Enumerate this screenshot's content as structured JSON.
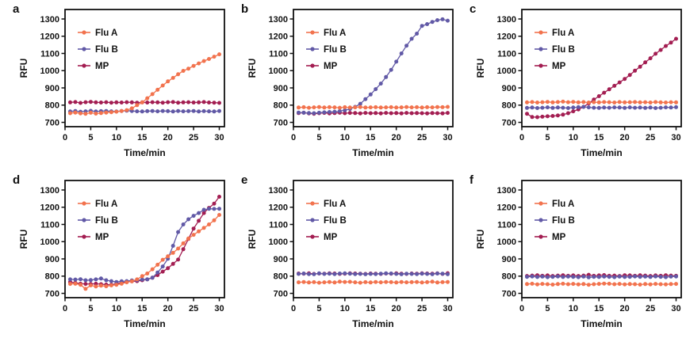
{
  "figure": {
    "background": "#ffffff",
    "text_color": "#111111",
    "axis_color": "#111111",
    "series_colors": {
      "Flu A": "#F2734E",
      "Flu B": "#6159A6",
      "MP": "#A31E52"
    }
  },
  "chart_data": [
    {
      "panel_label": "a",
      "type": "line",
      "xlabel": "Time/min",
      "ylabel": "RFU",
      "xlim": [
        0,
        31
      ],
      "ylim": [
        675,
        1355
      ],
      "xticks": [
        0,
        5,
        10,
        15,
        20,
        25,
        30
      ],
      "yticks": [
        700,
        800,
        900,
        1000,
        1100,
        1200,
        1300
      ],
      "grid": false,
      "legend_position": "upper-left",
      "marker": "circle",
      "x": [
        1,
        2,
        3,
        4,
        5,
        6,
        7,
        8,
        9,
        10,
        11,
        12,
        13,
        14,
        15,
        16,
        17,
        18,
        19,
        20,
        21,
        22,
        23,
        24,
        25,
        26,
        27,
        28,
        29,
        30
      ],
      "series": [
        {
          "name": "Flu A",
          "color": "#F2734E",
          "values": [
            753,
            757,
            752,
            750,
            756,
            751,
            754,
            757,
            759,
            762,
            766,
            771,
            781,
            800,
            816,
            840,
            864,
            889,
            914,
            938,
            958,
            979,
            999,
            1012,
            1028,
            1042,
            1056,
            1068,
            1081,
            1095
          ]
        },
        {
          "name": "Flu B",
          "color": "#6159A6",
          "values": [
            763,
            766,
            762,
            764,
            767,
            763,
            765,
            766,
            764,
            763,
            766,
            768,
            766,
            764,
            763,
            765,
            766,
            764,
            766,
            765,
            763,
            766,
            764,
            765,
            766,
            763,
            765,
            764,
            763,
            766
          ]
        },
        {
          "name": "MP",
          "color": "#A31E52",
          "values": [
            816,
            818,
            813,
            817,
            819,
            816,
            815,
            817,
            814,
            816,
            815,
            817,
            816,
            814,
            816,
            815,
            817,
            816,
            814,
            817,
            818,
            814,
            816,
            817,
            815,
            816,
            818,
            815,
            814,
            813
          ]
        }
      ]
    },
    {
      "panel_label": "b",
      "type": "line",
      "xlabel": "Time/min",
      "ylabel": "RFU",
      "xlim": [
        0,
        31
      ],
      "ylim": [
        675,
        1355
      ],
      "xticks": [
        0,
        5,
        10,
        15,
        20,
        25,
        30
      ],
      "yticks": [
        700,
        800,
        900,
        1000,
        1100,
        1200,
        1300
      ],
      "grid": false,
      "legend_position": "upper-left",
      "marker": "circle",
      "x": [
        1,
        2,
        3,
        4,
        5,
        6,
        7,
        8,
        9,
        10,
        11,
        12,
        13,
        14,
        15,
        16,
        17,
        18,
        19,
        20,
        21,
        22,
        23,
        24,
        25,
        26,
        27,
        28,
        29,
        30
      ],
      "series": [
        {
          "name": "Flu A",
          "color": "#F2734E",
          "values": [
            786,
            788,
            785,
            787,
            789,
            786,
            788,
            787,
            785,
            788,
            786,
            787,
            789,
            786,
            787,
            788,
            786,
            787,
            788,
            786,
            787,
            789,
            787,
            788,
            786,
            788,
            787,
            789,
            788,
            790
          ]
        },
        {
          "name": "Flu B",
          "color": "#6159A6",
          "values": [
            757,
            756,
            754,
            753,
            756,
            758,
            760,
            762,
            765,
            770,
            778,
            790,
            808,
            835,
            862,
            893,
            925,
            963,
            1005,
            1052,
            1100,
            1145,
            1185,
            1215,
            1260,
            1270,
            1283,
            1293,
            1298,
            1290
          ]
        },
        {
          "name": "MP",
          "color": "#A31E52",
          "values": [
            754,
            756,
            752,
            750,
            753,
            755,
            752,
            754,
            756,
            753,
            755,
            754,
            752,
            755,
            753,
            754,
            752,
            755,
            753,
            754,
            752,
            755,
            753,
            754,
            753,
            752,
            754,
            753,
            752,
            755
          ]
        }
      ]
    },
    {
      "panel_label": "c",
      "type": "line",
      "xlabel": "Time/min",
      "ylabel": "RFU",
      "xlim": [
        0,
        31
      ],
      "ylim": [
        675,
        1355
      ],
      "xticks": [
        0,
        5,
        10,
        15,
        20,
        25,
        30
      ],
      "yticks": [
        700,
        800,
        900,
        1000,
        1100,
        1200,
        1300
      ],
      "grid": false,
      "legend_position": "upper-left",
      "marker": "circle",
      "x": [
        1,
        2,
        3,
        4,
        5,
        6,
        7,
        8,
        9,
        10,
        11,
        12,
        13,
        14,
        15,
        16,
        17,
        18,
        19,
        20,
        21,
        22,
        23,
        24,
        25,
        26,
        27,
        28,
        29,
        30
      ],
      "series": [
        {
          "name": "Flu A",
          "color": "#F2734E",
          "values": [
            816,
            818,
            815,
            817,
            819,
            816,
            818,
            820,
            817,
            819,
            816,
            818,
            815,
            817,
            816,
            818,
            817,
            815,
            818,
            816,
            817,
            818,
            816,
            817,
            815,
            818,
            816,
            815,
            817,
            816
          ]
        },
        {
          "name": "Flu B",
          "color": "#6159A6",
          "values": [
            784,
            786,
            783,
            785,
            787,
            784,
            786,
            785,
            783,
            786,
            788,
            790,
            787,
            785,
            784,
            786,
            785,
            787,
            786,
            784,
            787,
            785,
            786,
            784,
            786,
            783,
            785,
            787,
            786,
            788
          ]
        },
        {
          "name": "MP",
          "color": "#A31E52",
          "values": [
            750,
            731,
            730,
            733,
            735,
            737,
            740,
            745,
            753,
            764,
            775,
            790,
            810,
            832,
            852,
            872,
            892,
            912,
            932,
            952,
            975,
            1000,
            1023,
            1048,
            1072,
            1098,
            1120,
            1143,
            1163,
            1185
          ]
        }
      ]
    },
    {
      "panel_label": "d",
      "type": "line",
      "xlabel": "Time/min",
      "ylabel": "RFU",
      "xlim": [
        0,
        31
      ],
      "ylim": [
        675,
        1355
      ],
      "xticks": [
        0,
        5,
        10,
        15,
        20,
        25,
        30
      ],
      "yticks": [
        700,
        800,
        900,
        1000,
        1100,
        1200,
        1300
      ],
      "grid": false,
      "legend_position": "upper-left",
      "marker": "circle",
      "x": [
        1,
        2,
        3,
        4,
        5,
        6,
        7,
        8,
        9,
        10,
        11,
        12,
        13,
        14,
        15,
        16,
        17,
        18,
        19,
        20,
        21,
        22,
        23,
        24,
        25,
        26,
        27,
        28,
        29,
        30
      ],
      "series": [
        {
          "name": "Flu A",
          "color": "#F2734E",
          "values": [
            755,
            756,
            750,
            726,
            746,
            740,
            745,
            741,
            746,
            750,
            756,
            764,
            770,
            781,
            800,
            815,
            840,
            866,
            895,
            915,
            935,
            960,
            990,
            1018,
            1040,
            1060,
            1080,
            1100,
            1124,
            1155
          ]
        },
        {
          "name": "Flu B",
          "color": "#6159A6",
          "values": [
            781,
            780,
            782,
            776,
            777,
            781,
            786,
            776,
            771,
            766,
            770,
            771,
            775,
            776,
            780,
            781,
            791,
            821,
            856,
            901,
            976,
            1056,
            1100,
            1130,
            1150,
            1166,
            1185,
            1191,
            1190,
            1191
          ]
        },
        {
          "name": "MP",
          "color": "#A31E52",
          "values": [
            766,
            761,
            756,
            755,
            754,
            756,
            753,
            751,
            750,
            756,
            761,
            766,
            770,
            771,
            776,
            781,
            791,
            806,
            826,
            846,
            871,
            896,
            956,
            1016,
            1076,
            1121,
            1166,
            1196,
            1221,
            1261
          ]
        }
      ]
    },
    {
      "panel_label": "e",
      "type": "line",
      "xlabel": "Time/min",
      "ylabel": "RFU",
      "xlim": [
        0,
        31
      ],
      "ylim": [
        675,
        1355
      ],
      "xticks": [
        0,
        5,
        10,
        15,
        20,
        25,
        30
      ],
      "yticks": [
        700,
        800,
        900,
        1000,
        1100,
        1200,
        1300
      ],
      "grid": false,
      "legend_position": "upper-left",
      "marker": "circle",
      "x": [
        1,
        2,
        3,
        4,
        5,
        6,
        7,
        8,
        9,
        10,
        11,
        12,
        13,
        14,
        15,
        16,
        17,
        18,
        19,
        20,
        21,
        22,
        23,
        24,
        25,
        26,
        27,
        28,
        29,
        30
      ],
      "series": [
        {
          "name": "Flu A",
          "color": "#F2734E",
          "values": [
            764,
            766,
            763,
            765,
            762,
            764,
            766,
            763,
            768,
            766,
            767,
            764,
            762,
            765,
            763,
            766,
            764,
            766,
            765,
            763,
            766,
            764,
            765,
            766,
            763,
            765,
            768,
            763,
            765,
            766
          ]
        },
        {
          "name": "Flu B",
          "color": "#6159A6",
          "values": [
            813,
            815,
            812,
            811,
            816,
            813,
            814,
            812,
            815,
            816,
            814,
            812,
            813,
            811,
            813,
            812,
            814,
            816,
            815,
            813,
            811,
            814,
            813,
            812,
            814,
            813,
            811,
            815,
            814,
            811
          ]
        },
        {
          "name": "MP",
          "color": "#A31E52",
          "values": [
            815,
            814,
            816,
            813,
            815,
            814,
            816,
            815,
            813,
            814,
            816,
            815,
            814,
            813,
            815,
            814,
            813,
            815,
            814,
            816,
            814,
            813,
            815,
            814,
            816,
            815,
            814,
            816,
            813,
            817
          ]
        }
      ]
    },
    {
      "panel_label": "f",
      "type": "line",
      "xlabel": "Time/min",
      "ylabel": "RFU",
      "xlim": [
        0,
        31
      ],
      "ylim": [
        675,
        1355
      ],
      "xticks": [
        0,
        5,
        10,
        15,
        20,
        25,
        30
      ],
      "yticks": [
        700,
        800,
        900,
        1000,
        1100,
        1200,
        1300
      ],
      "grid": false,
      "legend_position": "upper-left",
      "marker": "circle",
      "x": [
        1,
        2,
        3,
        4,
        5,
        6,
        7,
        8,
        9,
        10,
        11,
        12,
        13,
        14,
        15,
        16,
        17,
        18,
        19,
        20,
        21,
        22,
        23,
        24,
        25,
        26,
        27,
        28,
        29,
        30
      ],
      "series": [
        {
          "name": "Flu A",
          "color": "#F2734E",
          "values": [
            754,
            756,
            752,
            755,
            753,
            751,
            754,
            756,
            753,
            755,
            752,
            754,
            750,
            753,
            755,
            757,
            756,
            753,
            755,
            752,
            754,
            753,
            751,
            754,
            752,
            755,
            753,
            752,
            754,
            755
          ]
        },
        {
          "name": "Flu B",
          "color": "#6159A6",
          "values": [
            796,
            798,
            795,
            797,
            794,
            796,
            798,
            795,
            797,
            796,
            794,
            797,
            793,
            796,
            795,
            797,
            796,
            794,
            797,
            795,
            796,
            798,
            796,
            797,
            795,
            798,
            796,
            794,
            797,
            798
          ]
        },
        {
          "name": "MP",
          "color": "#A31E52",
          "values": [
            801,
            803,
            805,
            802,
            804,
            801,
            803,
            805,
            802,
            804,
            801,
            803,
            808,
            802,
            804,
            806,
            802,
            803,
            801,
            805,
            804,
            802,
            805,
            803,
            801,
            804,
            802,
            805,
            803,
            802
          ]
        }
      ]
    }
  ]
}
